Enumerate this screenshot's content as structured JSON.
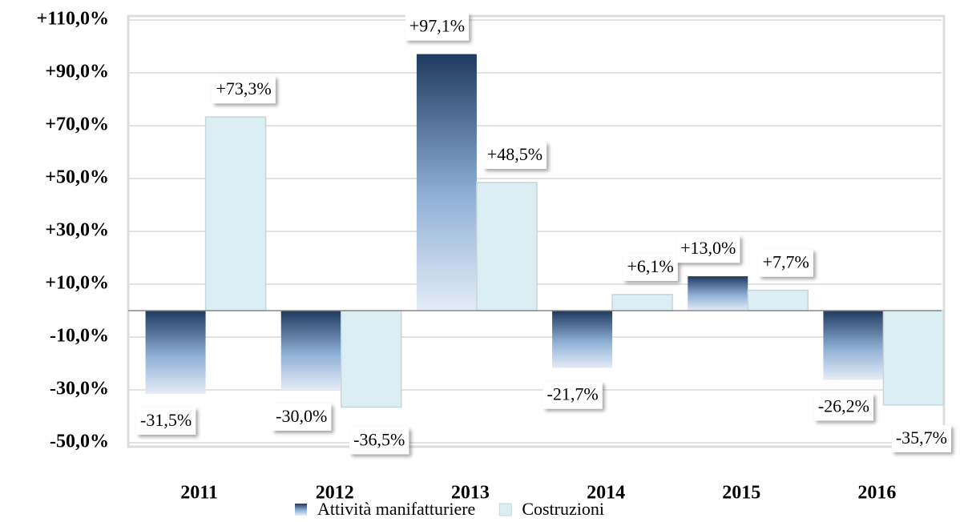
{
  "chart_data": {
    "type": "bar",
    "categories": [
      "2011",
      "2012",
      "2013",
      "2014",
      "2015",
      "2016"
    ],
    "series": [
      {
        "name": "Attività manifatturiere",
        "color": "#1f3a5f",
        "values": [
          -31.5,
          -30.0,
          97.1,
          -21.7,
          13.0,
          -26.2
        ],
        "value_labels": [
          "-31,5%",
          "-30,0%",
          "+97,1%",
          "-21,7%",
          "+13,0%",
          "-26,2%"
        ]
      },
      {
        "name": "Costruzioni",
        "color": "#dbeef4",
        "values": [
          73.3,
          -36.5,
          48.5,
          6.1,
          7.7,
          -35.7
        ],
        "value_labels": [
          "+73,3%",
          "-36,5%",
          "+48,5%",
          "+6,1%",
          "+7,7%",
          "-35,7%"
        ]
      }
    ],
    "ylim": [
      -50,
      110
    ],
    "yticks": [
      {
        "value": -50,
        "label": "-50,0%"
      },
      {
        "value": -30,
        "label": "-30,0%"
      },
      {
        "value": -10,
        "label": "-10,0%"
      },
      {
        "value": 10,
        "label": "+10,0%"
      },
      {
        "value": 30,
        "label": "+30,0%"
      },
      {
        "value": 50,
        "label": "+50,0%"
      },
      {
        "value": 70,
        "label": "+70,0%"
      },
      {
        "value": 90,
        "label": "+90,0%"
      },
      {
        "value": 110,
        "label": "+110,0%"
      }
    ],
    "grid": true,
    "legend": "bottom"
  }
}
